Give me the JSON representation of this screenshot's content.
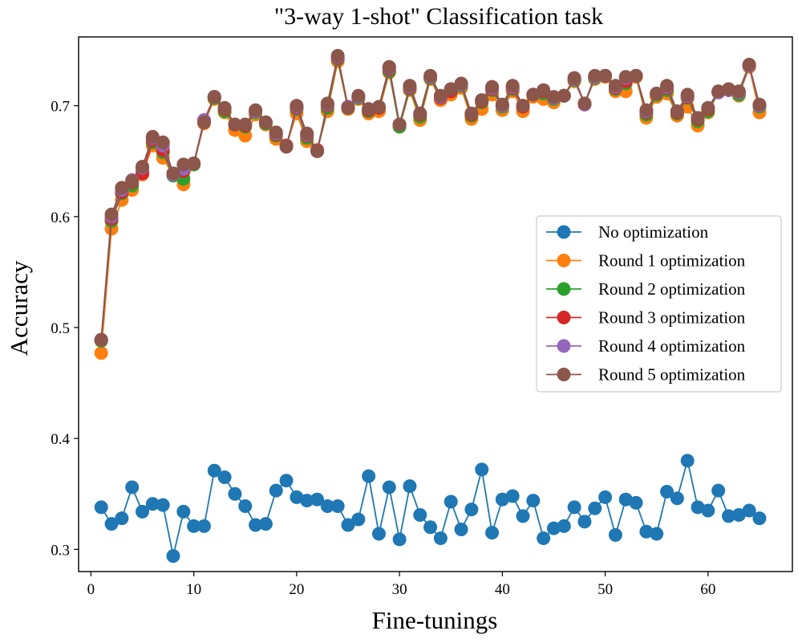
{
  "chart_data": {
    "type": "line",
    "title": "\"3-way 1-shot\" Classification task",
    "xlabel": "Fine-tunings",
    "ylabel": "Accuracy",
    "xlim": [
      -1.2,
      68.2
    ],
    "ylim": [
      0.28,
      0.762
    ],
    "xticks": [
      0,
      10,
      20,
      30,
      40,
      50,
      60
    ],
    "yticks": [
      0.3,
      0.4,
      0.5,
      0.6,
      0.7
    ],
    "xtick_labels": [
      "0",
      "10",
      "20",
      "30",
      "40",
      "50",
      "60"
    ],
    "ytick_labels": [
      "0.3",
      "0.4",
      "0.5",
      "0.6",
      "0.7"
    ],
    "grid": false,
    "legend_position": "center-right",
    "x": [
      1,
      2,
      3,
      4,
      5,
      6,
      7,
      8,
      9,
      10,
      11,
      12,
      13,
      14,
      15,
      16,
      17,
      18,
      19,
      20,
      21,
      22,
      23,
      24,
      25,
      26,
      27,
      28,
      29,
      30,
      31,
      32,
      33,
      34,
      35,
      36,
      37,
      38,
      39,
      40,
      41,
      42,
      43,
      44,
      45,
      46,
      47,
      48,
      49,
      50,
      51,
      52,
      53,
      54,
      55,
      56,
      57,
      58,
      59,
      60,
      61,
      62,
      63,
      64,
      65
    ],
    "series": [
      {
        "name": "No optimization",
        "color": "#1f77b4",
        "values": [
          0.338,
          0.323,
          0.328,
          0.356,
          0.334,
          0.341,
          0.34,
          0.294,
          0.334,
          0.321,
          0.321,
          0.371,
          0.365,
          0.35,
          0.339,
          0.322,
          0.323,
          0.353,
          0.362,
          0.347,
          0.344,
          0.345,
          0.339,
          0.339,
          0.322,
          0.327,
          0.366,
          0.314,
          0.356,
          0.309,
          0.357,
          0.331,
          0.32,
          0.31,
          0.343,
          0.318,
          0.336,
          0.372,
          0.315,
          0.345,
          0.348,
          0.33,
          0.344,
          0.31,
          0.319,
          0.321,
          0.338,
          0.325,
          0.337,
          0.347,
          0.313,
          0.345,
          0.342,
          0.316,
          0.314,
          0.352,
          0.346,
          0.38,
          0.338,
          0.335,
          0.353,
          0.33,
          0.331,
          0.335,
          0.328
        ]
      },
      {
        "name": "Round 1 optimization",
        "color": "#ff7f0e",
        "values": [
          0.477,
          0.589,
          0.615,
          0.624,
          0.638,
          0.664,
          0.653,
          0.637,
          0.629,
          0.647,
          0.684,
          0.706,
          0.694,
          0.678,
          0.673,
          0.692,
          0.683,
          0.67,
          0.664,
          0.693,
          0.668,
          0.66,
          0.695,
          0.74,
          0.697,
          0.706,
          0.693,
          0.695,
          0.73,
          0.681,
          0.714,
          0.687,
          0.724,
          0.705,
          0.71,
          0.716,
          0.688,
          0.697,
          0.71,
          0.696,
          0.713,
          0.695,
          0.708,
          0.706,
          0.703,
          0.709,
          0.722,
          0.702,
          0.724,
          0.726,
          0.713,
          0.713,
          0.726,
          0.689,
          0.708,
          0.711,
          0.691,
          0.699,
          0.682,
          0.694,
          0.712,
          0.714,
          0.709,
          0.735,
          0.694
        ]
      },
      {
        "name": "Round 2 optimization",
        "color": "#2ca02c",
        "values": [
          0.488,
          0.596,
          0.621,
          0.628,
          0.642,
          0.667,
          0.658,
          0.637,
          0.634,
          0.647,
          0.686,
          0.707,
          0.695,
          0.683,
          0.681,
          0.694,
          0.684,
          0.673,
          0.664,
          0.697,
          0.671,
          0.659,
          0.698,
          0.742,
          0.698,
          0.707,
          0.695,
          0.698,
          0.731,
          0.681,
          0.715,
          0.69,
          0.725,
          0.707,
          0.713,
          0.718,
          0.691,
          0.703,
          0.714,
          0.699,
          0.715,
          0.699,
          0.71,
          0.711,
          0.706,
          0.709,
          0.723,
          0.702,
          0.725,
          0.727,
          0.715,
          0.72,
          0.727,
          0.692,
          0.71,
          0.714,
          0.693,
          0.707,
          0.686,
          0.695,
          0.712,
          0.714,
          0.71,
          0.736,
          0.699
        ]
      },
      {
        "name": "Round 3 optimization",
        "color": "#d62728",
        "values": [
          0.489,
          0.598,
          0.622,
          0.631,
          0.639,
          0.669,
          0.66,
          0.638,
          0.641,
          0.648,
          0.687,
          0.708,
          0.697,
          0.683,
          0.682,
          0.695,
          0.685,
          0.674,
          0.664,
          0.698,
          0.673,
          0.66,
          0.7,
          0.743,
          0.699,
          0.708,
          0.696,
          0.698,
          0.733,
          0.683,
          0.716,
          0.692,
          0.726,
          0.707,
          0.713,
          0.719,
          0.692,
          0.704,
          0.715,
          0.7,
          0.716,
          0.699,
          0.71,
          0.713,
          0.707,
          0.709,
          0.724,
          0.701,
          0.726,
          0.727,
          0.716,
          0.722,
          0.727,
          0.694,
          0.711,
          0.716,
          0.694,
          0.708,
          0.688,
          0.697,
          0.712,
          0.714,
          0.712,
          0.736,
          0.7
        ]
      },
      {
        "name": "Round 4 optimization",
        "color": "#9467bd",
        "values": [
          0.489,
          0.6,
          0.624,
          0.633,
          0.644,
          0.671,
          0.664,
          0.638,
          0.643,
          0.648,
          0.687,
          0.708,
          0.698,
          0.683,
          0.683,
          0.695,
          0.685,
          0.675,
          0.663,
          0.699,
          0.674,
          0.659,
          0.701,
          0.744,
          0.699,
          0.708,
          0.697,
          0.699,
          0.734,
          0.683,
          0.717,
          0.693,
          0.726,
          0.708,
          0.715,
          0.719,
          0.693,
          0.705,
          0.716,
          0.7,
          0.717,
          0.7,
          0.71,
          0.714,
          0.707,
          0.709,
          0.724,
          0.701,
          0.726,
          0.727,
          0.717,
          0.725,
          0.727,
          0.695,
          0.711,
          0.717,
          0.695,
          0.709,
          0.689,
          0.698,
          0.712,
          0.714,
          0.712,
          0.736,
          0.7
        ]
      },
      {
        "name": "Round 5 optimization",
        "color": "#8c564b",
        "values": [
          0.489,
          0.602,
          0.626,
          0.632,
          0.645,
          0.672,
          0.667,
          0.639,
          0.647,
          0.648,
          0.685,
          0.708,
          0.698,
          0.683,
          0.683,
          0.696,
          0.685,
          0.676,
          0.663,
          0.7,
          0.675,
          0.659,
          0.702,
          0.745,
          0.698,
          0.709,
          0.697,
          0.699,
          0.735,
          0.683,
          0.718,
          0.693,
          0.727,
          0.709,
          0.715,
          0.72,
          0.693,
          0.705,
          0.717,
          0.701,
          0.718,
          0.7,
          0.71,
          0.714,
          0.708,
          0.709,
          0.725,
          0.702,
          0.727,
          0.727,
          0.718,
          0.726,
          0.727,
          0.696,
          0.711,
          0.718,
          0.695,
          0.71,
          0.689,
          0.698,
          0.713,
          0.715,
          0.713,
          0.737,
          0.701
        ]
      }
    ]
  }
}
